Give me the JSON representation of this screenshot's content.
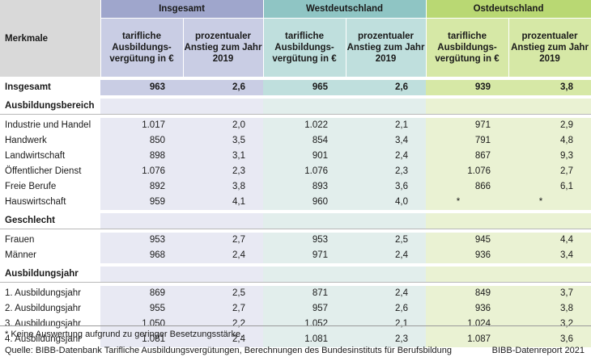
{
  "header": {
    "merkmale": "Merkmale",
    "groups": [
      "Insgesamt",
      "Westdeutschland",
      "Ostdeutschland"
    ],
    "sub1": "tarifliche Ausbildungs-vergütung in €",
    "sub2": "prozentualer Anstieg zum Jahr 2019"
  },
  "total": {
    "label": "Insgesamt",
    "values": [
      "963",
      "2,6",
      "965",
      "2,6",
      "939",
      "3,8"
    ]
  },
  "sections": [
    {
      "title": "Ausbildungsbereich",
      "rows": [
        {
          "label": "Industrie und Handel",
          "values": [
            "1.017",
            "2,0",
            "1.022",
            "2,1",
            "971",
            "2,9"
          ]
        },
        {
          "label": "Handwerk",
          "values": [
            "850",
            "3,5",
            "854",
            "3,4",
            "791",
            "4,8"
          ]
        },
        {
          "label": "Landwirtschaft",
          "values": [
            "898",
            "3,1",
            "901",
            "2,4",
            "867",
            "9,3"
          ]
        },
        {
          "label": "Öffentlicher Dienst",
          "values": [
            "1.076",
            "2,3",
            "1.076",
            "2,3",
            "1.076",
            "2,7"
          ]
        },
        {
          "label": "Freie Berufe",
          "values": [
            "892",
            "3,8",
            "893",
            "3,6",
            "866",
            "6,1"
          ]
        },
        {
          "label": "Hauswirtschaft",
          "values": [
            "959",
            "4,1",
            "960",
            "4,0",
            "*",
            "*"
          ]
        }
      ]
    },
    {
      "title": "Geschlecht",
      "rows": [
        {
          "label": "Frauen",
          "values": [
            "953",
            "2,7",
            "953",
            "2,5",
            "945",
            "4,4"
          ]
        },
        {
          "label": "Männer",
          "values": [
            "968",
            "2,4",
            "971",
            "2,4",
            "936",
            "3,4"
          ]
        }
      ]
    },
    {
      "title": "Ausbildungsjahr",
      "rows": [
        {
          "label": "1. Ausbildungsjahr",
          "values": [
            "869",
            "2,5",
            "871",
            "2,4",
            "849",
            "3,7"
          ]
        },
        {
          "label": "2. Ausbildungsjahr",
          "values": [
            "955",
            "2,7",
            "957",
            "2,6",
            "936",
            "3,8"
          ]
        },
        {
          "label": "3. Ausbildungsjahr",
          "values": [
            "1.050",
            "2,2",
            "1.052",
            "2,1",
            "1.024",
            "3,2"
          ]
        },
        {
          "label": "4. Ausbildungsjahr",
          "values": [
            "1.081",
            "2,4",
            "1.081",
            "2,3",
            "1.087",
            "3,6"
          ]
        }
      ]
    }
  ],
  "footnote": "* Keine Auswertung aufgrund zu geringer Besetzungsstärke.",
  "source": "Quelle: BIBB-Datenbank Tarifliche Ausbildungsvergütungen, Berechnungen des Bundesinstituts für Berufsbildung",
  "brand": "BIBB-Datenreport 2021",
  "colors": {
    "insgesamt_header": "#9fa6cc",
    "westdeutschland_header": "#8fc5c4",
    "ostdeutschland_header": "#b9d873"
  }
}
